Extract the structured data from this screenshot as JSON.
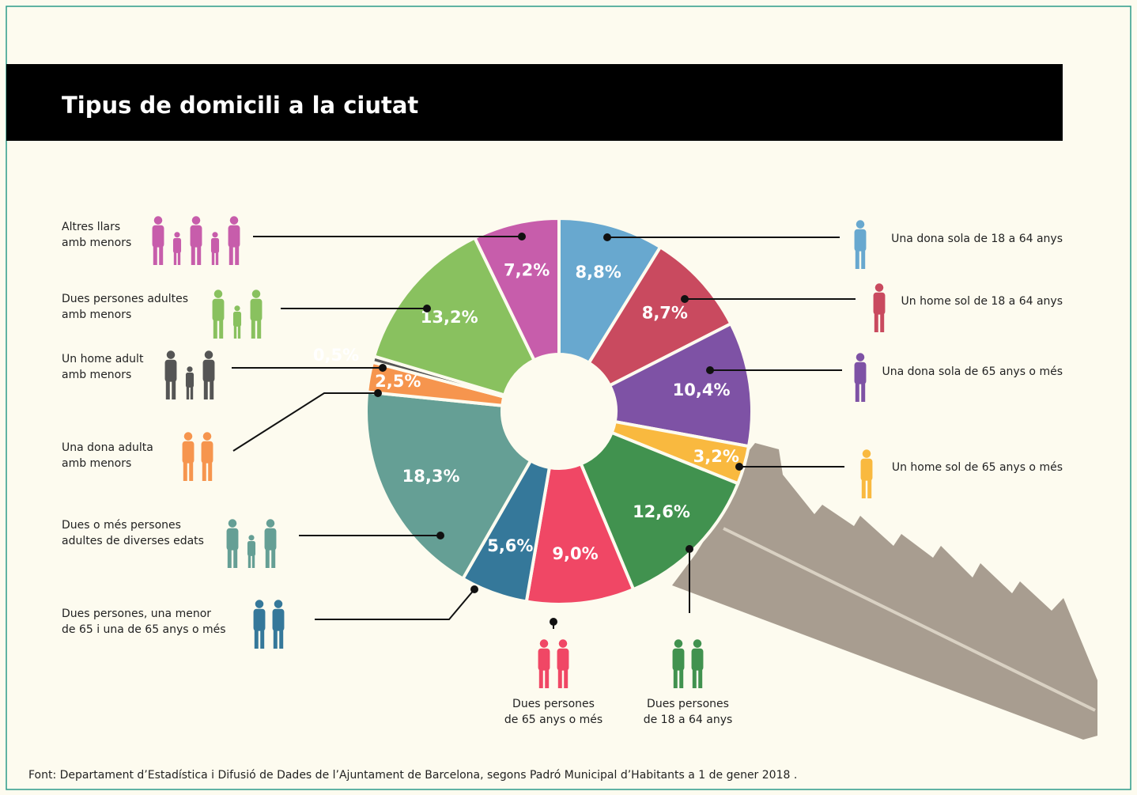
{
  "chart_data": {
    "type": "pie",
    "donut": true,
    "title": "Tipus de domicili a la ciutat",
    "source": "Font: Departament d’Estadística i Difusió de Dades de l’Ajuntament de Barcelona, segons Padró Municipal d’Habitants a 1 de gener 2018 .",
    "categories": [
      "Una dona sola de 18 a 64 anys",
      "Un home sol de 18 a 64 anys",
      "Una dona sola de 65 anys o més",
      "Un home sol de 65 anys o més",
      "Dues persones\nde 18 a 64 anys",
      "Dues persones\nde 65 anys o més",
      "Dues persones, una menor\nde 65 i una de 65 anys o més",
      "Dues o més persones\nadultes de diverses edats",
      "Una dona adulta\namb menors",
      "Un home adult\namb menors",
      "Dues persones adultes\namb menors",
      "Altres llars\namb menors"
    ],
    "values": [
      8.8,
      8.7,
      10.4,
      3.2,
      12.6,
      9.0,
      5.6,
      18.3,
      2.5,
      0.5,
      13.2,
      7.2
    ],
    "value_labels": [
      "8,8%",
      "8,7%",
      "10,4%",
      "3,2%",
      "12,6%",
      "9,0%",
      "5,6%",
      "18,3%",
      "2,5%",
      "0,5%",
      "13,2%",
      "7,2%"
    ],
    "colors": [
      "#68a8cf",
      "#c94a5f",
      "#7e52a5",
      "#f9b93f",
      "#41924f",
      "#f04765",
      "#35789a",
      "#659f95",
      "#f6954e",
      "#555555",
      "#89c15f",
      "#c75dab"
    ]
  }
}
